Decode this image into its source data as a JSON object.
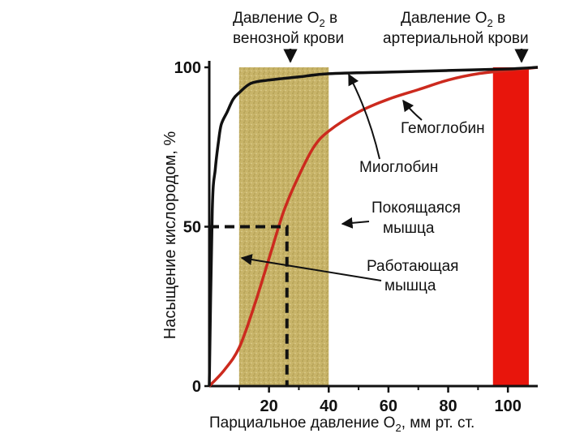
{
  "chart_data": {
    "type": "line",
    "xlabel": "Парциальное давление O",
    "xlabel_sub": "2",
    "xlabel_tail": ", мм рт. ст.",
    "ylabel": "Насыщение кислородом, %",
    "xlim": [
      0,
      110
    ],
    "ylim": [
      0,
      100
    ],
    "x_ticks": [
      "20",
      "40",
      "60",
      "80",
      "100"
    ],
    "x_tick_values": [
      20,
      40,
      60,
      80,
      100
    ],
    "y_ticks": [
      "0",
      "50",
      "100"
    ],
    "y_tick_values": [
      0,
      50,
      100
    ],
    "series": [
      {
        "name": "Миоглобин",
        "color": "#111111",
        "x": [
          0,
          1,
          2,
          3,
          4,
          6,
          8,
          10,
          14,
          20,
          30,
          40,
          60,
          80,
          100,
          110
        ],
        "y": [
          0,
          55,
          68,
          76,
          82,
          86,
          90,
          92,
          95,
          96,
          97,
          98,
          98.5,
          99,
          99.5,
          100
        ]
      },
      {
        "name": "Гемоглобин",
        "color": "#cc2a1e",
        "x": [
          0,
          5,
          10,
          15,
          20,
          25,
          30,
          35,
          40,
          50,
          60,
          70,
          80,
          90,
          100,
          110
        ],
        "y": [
          0,
          5,
          12,
          25,
          40,
          55,
          66,
          75,
          80,
          86,
          90,
          93,
          96,
          98,
          99,
          100
        ]
      }
    ],
    "annotations": {
      "venous": {
        "line1": "Давление O",
        "sub": "2",
        "line1_tail": " в",
        "line2": "венозной крови"
      },
      "arterial": {
        "line1": "Давление O",
        "sub": "2",
        "line1_tail": " в",
        "line2": "артериальной крови"
      },
      "hemoglobin": "Гемоглобин",
      "myoglobin": "Миоглобин",
      "resting": [
        "Покоящаяся",
        "мышца"
      ],
      "working": [
        "Работающая",
        "мышца"
      ]
    },
    "venous_band": [
      10,
      40
    ],
    "arterial_band": [
      95,
      107
    ],
    "p50_hemoglobin": {
      "x": 26,
      "y": 50
    },
    "colors": {
      "venous_band": "#c8b469",
      "arterial_band": "#e8150c",
      "axis": "#111111"
    },
    "grid": false,
    "legend": "none"
  }
}
